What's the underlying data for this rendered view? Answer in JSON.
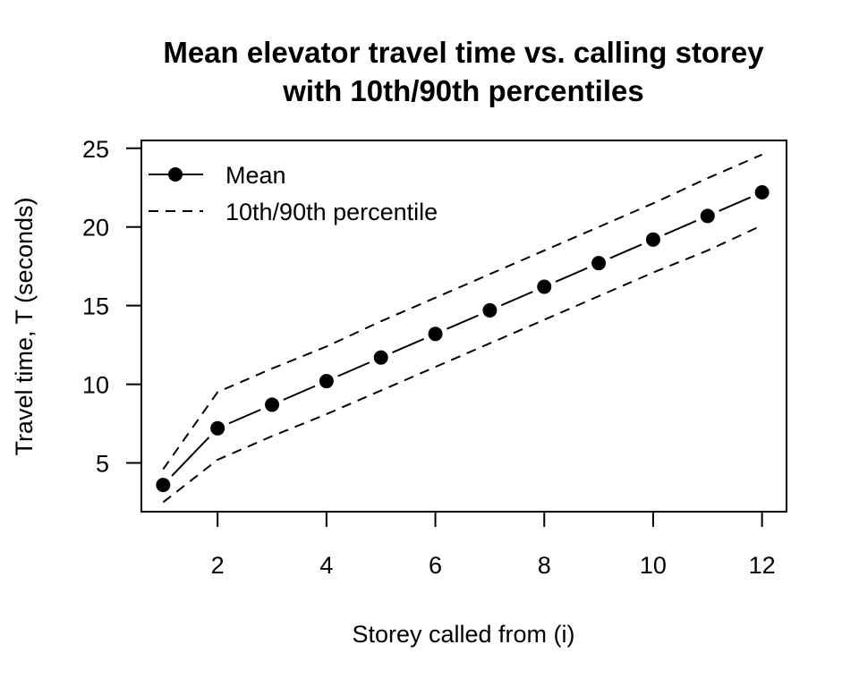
{
  "chart_data": {
    "type": "line",
    "title_lines": [
      "Mean elevator travel time vs. calling storey",
      "with 10th/90th percentiles"
    ],
    "xlabel": "Storey called from (i)",
    "ylabel": "Travel time, T (seconds)",
    "xlim": [
      0.6,
      12.45
    ],
    "ylim": [
      1.9,
      25.5
    ],
    "xticks": [
      2,
      4,
      6,
      8,
      10,
      12
    ],
    "yticks": [
      5,
      10,
      15,
      20,
      25
    ],
    "legend_position": "top-left",
    "x": [
      1,
      2,
      3,
      4,
      5,
      6,
      7,
      8,
      9,
      10,
      11,
      12
    ],
    "series": [
      {
        "name": "Mean",
        "style": "solid-points",
        "values": [
          3.6,
          7.2,
          8.7,
          10.2,
          11.7,
          13.2,
          14.7,
          16.2,
          17.7,
          19.2,
          20.7,
          22.2
        ]
      },
      {
        "name": "10th/90th percentile",
        "role": "lower",
        "style": "dashed",
        "values": [
          2.5,
          5.2,
          6.7,
          8.1,
          9.6,
          11.1,
          12.6,
          14.1,
          15.6,
          17.1,
          18.5,
          20.1
        ]
      },
      {
        "name": "10th/90th percentile",
        "role": "upper",
        "style": "dashed",
        "values": [
          4.6,
          9.5,
          11.0,
          12.4,
          14.0,
          15.5,
          17.0,
          18.5,
          20.0,
          21.5,
          23.1,
          24.6
        ]
      }
    ],
    "legend": [
      {
        "label": "Mean",
        "style": "solid-points"
      },
      {
        "label": "10th/90th percentile",
        "style": "dashed"
      }
    ]
  }
}
